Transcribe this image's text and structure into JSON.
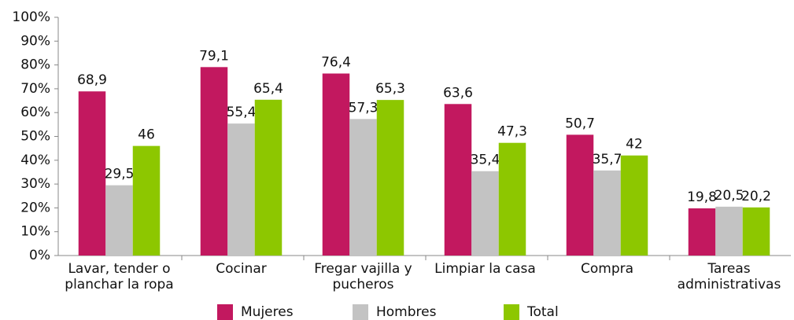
{
  "chart_data": {
    "type": "bar",
    "categories": [
      "Lavar, tender o planchar la ropa",
      "Cocinar",
      "Fregar vajilla y pucheros",
      "Limpiar la casa",
      "Compra",
      "Tareas administrativas"
    ],
    "series": [
      {
        "name": "Mujeres",
        "color": "#c2185f",
        "values": [
          68.9,
          79.1,
          76.4,
          63.6,
          50.7,
          19.8
        ],
        "value_labels": [
          "68,9",
          "79,1",
          "76,4",
          "63,6",
          "50,7",
          "19,8"
        ]
      },
      {
        "name": "Hombres",
        "color": "#c3c3c3",
        "values": [
          29.5,
          55.4,
          57.3,
          35.4,
          35.7,
          20.5
        ],
        "value_labels": [
          "29,5",
          "55,4",
          "57,3",
          "35,4",
          "35,7",
          "20,5"
        ]
      },
      {
        "name": "Total",
        "color": "#8dc700",
        "values": [
          46,
          65.4,
          65.3,
          47.3,
          42,
          20.2
        ],
        "value_labels": [
          "46",
          "65,4",
          "65,3",
          "47,3",
          "42",
          "20,2"
        ]
      }
    ],
    "ylim": [
      0,
      100
    ],
    "yticks": [
      {
        "value": 0,
        "label": "0%"
      },
      {
        "value": 10,
        "label": "10%"
      },
      {
        "value": 20,
        "label": "20%"
      },
      {
        "value": 30,
        "label": "30%"
      },
      {
        "value": 40,
        "label": "40%"
      },
      {
        "value": 50,
        "label": "50%"
      },
      {
        "value": 60,
        "label": "60%"
      },
      {
        "value": 70,
        "label": "70%"
      },
      {
        "value": 80,
        "label": "80%"
      },
      {
        "value": 90,
        "label": "90%"
      },
      {
        "value": 100,
        "label": "100%"
      }
    ],
    "grid": false,
    "legend": "bottom"
  }
}
